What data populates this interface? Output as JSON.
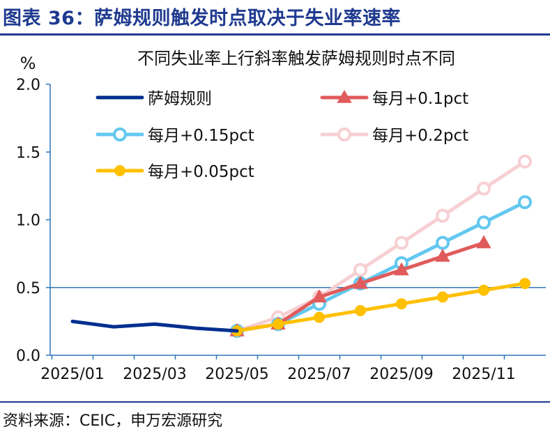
{
  "figure_title": "图表 36：萨姆规则触发时点取决于失业率速率",
  "source": "资料来源：CEIC，申万宏源研究",
  "colors": {
    "title_blue": "#1f3a8f",
    "axis": "#2e75b6",
    "sahm": "#002f8e",
    "pct01": "#e05b5b",
    "pct015": "#63c8f0",
    "pct02": "#f7cfd2",
    "pct005": "#ffc000"
  },
  "chart_data": {
    "type": "line",
    "title": "不同失业率上行斜率触发萨姆规则时点不同",
    "ylabel": "%",
    "ylim": [
      0,
      2.0
    ],
    "yticks": [
      "0.0",
      "0.5",
      "1.0",
      "1.5",
      "2.0"
    ],
    "categories": [
      "2025/01",
      "2025/02",
      "2025/03",
      "2025/04",
      "2025/05",
      "2025/06",
      "2025/07",
      "2025/08",
      "2025/09",
      "2025/10",
      "2025/11",
      "2025/12"
    ],
    "xtick_labels": [
      "2025/01",
      "2025/03",
      "2025/05",
      "2025/07",
      "2025/09",
      "2025/11"
    ],
    "legend_position": "top",
    "series": [
      {
        "name": "萨姆规则",
        "color": "#002f8e",
        "marker": "none",
        "values": [
          0.25,
          0.21,
          0.23,
          0.2,
          0.18,
          null,
          null,
          null,
          null,
          null,
          null,
          null
        ]
      },
      {
        "name": "每月+0.1pct",
        "color": "#e05b5b",
        "marker": "triangle",
        "values": [
          null,
          null,
          null,
          null,
          0.18,
          0.23,
          0.43,
          0.53,
          0.63,
          0.73,
          0.83,
          null
        ]
      },
      {
        "name": "每月+0.15pct",
        "color": "#63c8f0",
        "marker": "circle-hollow",
        "values": [
          null,
          null,
          null,
          null,
          0.18,
          0.23,
          0.38,
          0.53,
          0.68,
          0.83,
          0.98,
          1.13
        ]
      },
      {
        "name": "每月+0.2pct",
        "color": "#f7cfd2",
        "marker": "circle-hollow",
        "values": [
          null,
          null,
          null,
          null,
          0.18,
          0.28,
          0.43,
          0.63,
          0.83,
          1.03,
          1.23,
          1.43
        ]
      },
      {
        "name": "每月+0.05pct",
        "color": "#ffc000",
        "marker": "circle-filled",
        "values": [
          null,
          null,
          null,
          null,
          0.18,
          0.23,
          0.28,
          0.33,
          0.38,
          0.43,
          0.48,
          0.53
        ]
      }
    ]
  }
}
